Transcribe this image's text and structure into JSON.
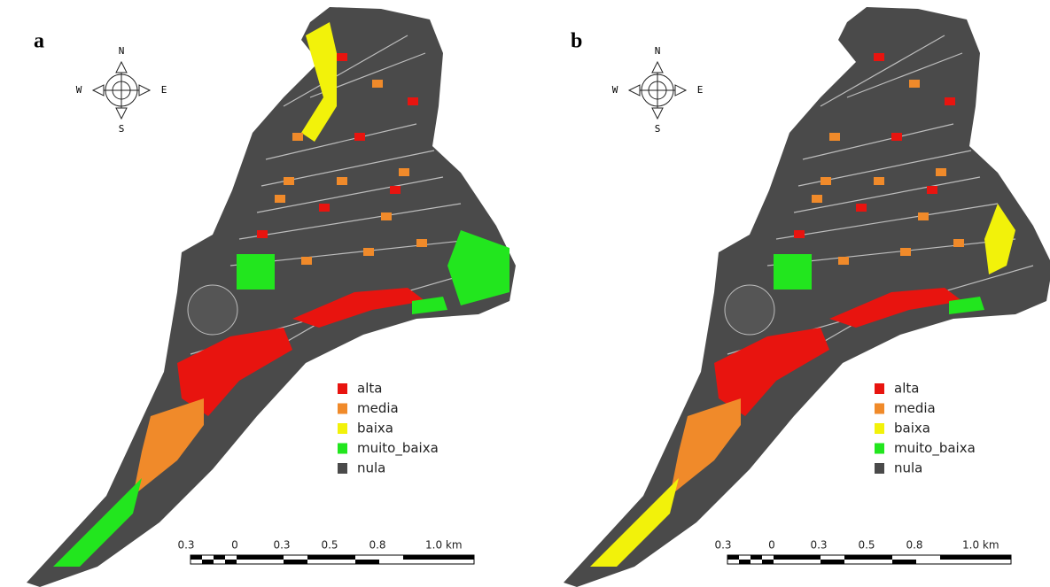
{
  "panels": [
    {
      "label": "a",
      "compass": {
        "n": "N",
        "s": "S",
        "w": "W",
        "e": "E"
      },
      "legend": [
        {
          "label": "alta",
          "color": "#e8140f"
        },
        {
          "label": "media",
          "color": "#f08a2a"
        },
        {
          "label": "baixa",
          "color": "#f2f20a"
        },
        {
          "label": "muito_baixa",
          "color": "#22e61e"
        },
        {
          "label": "nula",
          "color": "#4a4a4a"
        }
      ],
      "scale": [
        "0.3",
        "0",
        "0.3",
        "0.5",
        "0.8",
        "1.0 km"
      ]
    },
    {
      "label": "b",
      "compass": {
        "n": "N",
        "s": "S",
        "w": "W",
        "e": "E"
      },
      "legend": [
        {
          "label": "alta",
          "color": "#e8140f"
        },
        {
          "label": "media",
          "color": "#f08a2a"
        },
        {
          "label": "baixa",
          "color": "#f2f20a"
        },
        {
          "label": "muito_baixa",
          "color": "#22e61e"
        },
        {
          "label": "nula",
          "color": "#4a4a4a"
        }
      ],
      "scale": [
        "0.3",
        "0",
        "0.3",
        "0.5",
        "0.8",
        "1.0 km"
      ]
    }
  ]
}
